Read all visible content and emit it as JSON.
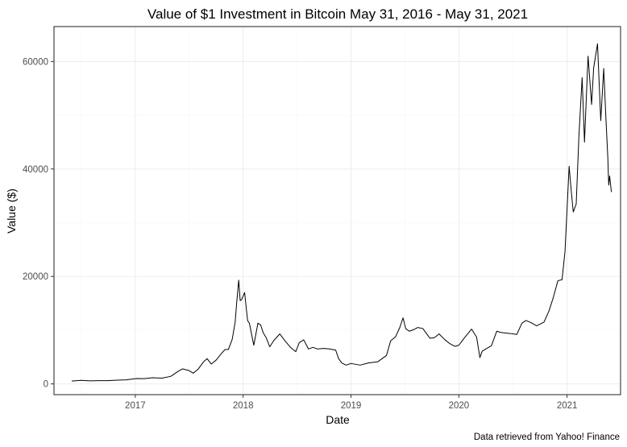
{
  "chart_data": {
    "type": "line",
    "title": "Value of $1 Investment in Bitcoin May 31, 2016 - May 31, 2021",
    "xlabel": "Date",
    "ylabel": "Value ($)",
    "caption": "Data retrieved from Yahoo! Finance",
    "grid": true,
    "legend": "none",
    "line_color": "#000000",
    "xlim": [
      "2016-04-01",
      "2021-07-01"
    ],
    "ylim": [
      -2000,
      66500
    ],
    "x_ticks": [
      {
        "value": "2017-01-01",
        "label": "2017"
      },
      {
        "value": "2018-01-01",
        "label": "2018"
      },
      {
        "value": "2019-01-01",
        "label": "2019"
      },
      {
        "value": "2020-01-01",
        "label": "2020"
      },
      {
        "value": "2021-01-01",
        "label": "2021"
      }
    ],
    "y_ticks": [
      {
        "value": 0,
        "label": "0"
      },
      {
        "value": 20000,
        "label": "20000"
      },
      {
        "value": 40000,
        "label": "40000"
      },
      {
        "value": 60000,
        "label": "60000"
      }
    ],
    "series": [
      {
        "x": [
          "2016-05-31",
          "2016-07-01",
          "2016-08-01",
          "2016-09-01",
          "2016-10-01",
          "2016-11-01",
          "2016-12-01",
          "2017-01-05",
          "2017-02-01",
          "2017-03-01",
          "2017-04-01",
          "2017-05-01",
          "2017-05-25",
          "2017-06-10",
          "2017-07-01",
          "2017-07-16",
          "2017-08-01",
          "2017-08-20",
          "2017-09-01",
          "2017-09-15",
          "2017-10-01",
          "2017-10-20",
          "2017-11-01",
          "2017-11-12",
          "2017-11-25",
          "2017-12-05",
          "2017-12-10",
          "2017-12-17",
          "2017-12-22",
          "2017-12-27",
          "2018-01-06",
          "2018-01-16",
          "2018-01-22",
          "2018-02-06",
          "2018-02-20",
          "2018-03-01",
          "2018-03-10",
          "2018-03-20",
          "2018-04-01",
          "2018-04-15",
          "2018-05-05",
          "2018-05-20",
          "2018-06-10",
          "2018-06-28",
          "2018-07-10",
          "2018-07-25",
          "2018-08-10",
          "2018-08-25",
          "2018-09-10",
          "2018-10-01",
          "2018-10-20",
          "2018-11-10",
          "2018-11-20",
          "2018-12-01",
          "2018-12-15",
          "2019-01-01",
          "2019-02-01",
          "2019-03-01",
          "2019-04-01",
          "2019-05-01",
          "2019-05-15",
          "2019-06-01",
          "2019-06-15",
          "2019-06-26",
          "2019-07-05",
          "2019-07-17",
          "2019-08-01",
          "2019-08-15",
          "2019-09-01",
          "2019-09-25",
          "2019-10-10",
          "2019-10-26",
          "2019-11-15",
          "2019-12-01",
          "2019-12-18",
          "2020-01-01",
          "2020-01-20",
          "2020-02-13",
          "2020-03-01",
          "2020-03-12",
          "2020-03-20",
          "2020-04-01",
          "2020-04-20",
          "2020-05-08",
          "2020-05-20",
          "2020-06-01",
          "2020-06-20",
          "2020-07-15",
          "2020-08-01",
          "2020-08-15",
          "2020-09-01",
          "2020-09-20",
          "2020-10-15",
          "2020-11-01",
          "2020-11-15",
          "2020-12-01",
          "2020-12-15",
          "2020-12-25",
          "2021-01-08",
          "2021-01-15",
          "2021-01-22",
          "2021-02-01",
          "2021-02-10",
          "2021-02-21",
          "2021-03-01",
          "2021-03-13",
          "2021-03-25",
          "2021-04-01",
          "2021-04-14",
          "2021-04-25",
          "2021-05-05",
          "2021-05-12",
          "2021-05-19",
          "2021-05-22",
          "2021-05-25",
          "2021-05-31"
        ],
        "y": [
          530,
          670,
          570,
          600,
          610,
          700,
          750,
          990,
          980,
          1150,
          1070,
          1400,
          2300,
          2800,
          2500,
          2000,
          2700,
          4100,
          4700,
          3700,
          4400,
          5700,
          6400,
          6400,
          8300,
          11500,
          15000,
          19300,
          15500,
          15700,
          17000,
          11800,
          11300,
          7200,
          11300,
          11000,
          9500,
          8600,
          6900,
          8100,
          9300,
          8200,
          6800,
          6000,
          7700,
          8200,
          6500,
          6800,
          6500,
          6600,
          6500,
          6300,
          4700,
          3900,
          3500,
          3800,
          3500,
          3900,
          4100,
          5300,
          8000,
          8800,
          10500,
          12300,
          10300,
          9800,
          10100,
          10500,
          10300,
          8500,
          8600,
          9300,
          8200,
          7500,
          7000,
          7200,
          8600,
          10200,
          8700,
          4900,
          6100,
          6500,
          7100,
          9800,
          9600,
          9500,
          9400,
          9200,
          11300,
          11800,
          11400,
          10800,
          11500,
          13600,
          16000,
          19200,
          19400,
          24600,
          40500,
          36000,
          32000,
          33500,
          46000,
          57000,
          45000,
          61000,
          52000,
          58800,
          63300,
          49000,
          58700,
          50000,
          42000,
          37000,
          38700,
          35700
        ]
      }
    ]
  }
}
